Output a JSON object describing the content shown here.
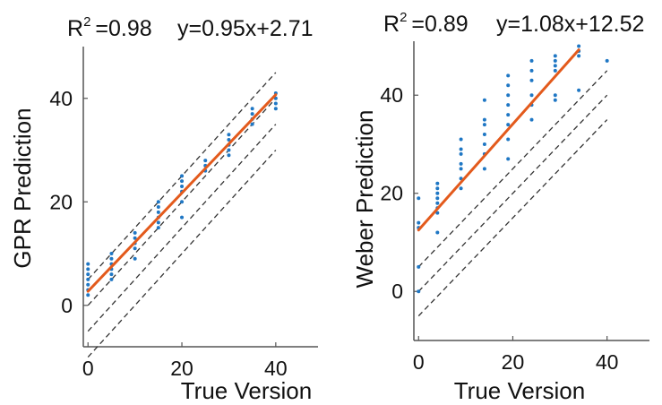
{
  "chart_data": [
    {
      "type": "scatter",
      "annotation": {
        "r2_label": "R",
        "r2_sup": "2",
        "r2_eq": "=0.98",
        "equation": "y=0.95x+2.71"
      },
      "xlabel": "True Version",
      "ylabel": "GPR Prediction",
      "xlim": [
        -1,
        49
      ],
      "ylim": [
        -8,
        50
      ],
      "x_ticks": [
        0,
        20,
        40
      ],
      "y_ticks": [
        0,
        20,
        40
      ],
      "colors": {
        "points": "#1f77c4",
        "fit": "#e35a1c",
        "guides": "#333333",
        "axis": "#555555"
      },
      "fit": {
        "slope": 0.95,
        "intercept": 2.71,
        "x_range": [
          0,
          40
        ]
      },
      "guides": {
        "slope": 1,
        "offsets": [
          5,
          0,
          -5,
          -10
        ],
        "x_range": [
          0,
          40
        ]
      },
      "points": [
        [
          0,
          2
        ],
        [
          0,
          3
        ],
        [
          0,
          4
        ],
        [
          0,
          5
        ],
        [
          0,
          6
        ],
        [
          0,
          7
        ],
        [
          0,
          8
        ],
        [
          5,
          5
        ],
        [
          5,
          6
        ],
        [
          5,
          7
        ],
        [
          5,
          8
        ],
        [
          5,
          9
        ],
        [
          5,
          10
        ],
        [
          10,
          9
        ],
        [
          10,
          11
        ],
        [
          10,
          12
        ],
        [
          10,
          13
        ],
        [
          10,
          14
        ],
        [
          15,
          15
        ],
        [
          15,
          16
        ],
        [
          15,
          17
        ],
        [
          15,
          18
        ],
        [
          15,
          19
        ],
        [
          15,
          20
        ],
        [
          20,
          17
        ],
        [
          20,
          20
        ],
        [
          20,
          22
        ],
        [
          20,
          23
        ],
        [
          20,
          24
        ],
        [
          20,
          25
        ],
        [
          25,
          26
        ],
        [
          25,
          27
        ],
        [
          25,
          28
        ],
        [
          30,
          29
        ],
        [
          30,
          30
        ],
        [
          30,
          31
        ],
        [
          30,
          32
        ],
        [
          30,
          33
        ],
        [
          35,
          35
        ],
        [
          35,
          36
        ],
        [
          35,
          37
        ],
        [
          35,
          38
        ],
        [
          40,
          38
        ],
        [
          40,
          39
        ],
        [
          40,
          40
        ],
        [
          40,
          41
        ]
      ]
    },
    {
      "type": "scatter",
      "annotation": {
        "r2_label": "R",
        "r2_sup": "2",
        "r2_eq": "=0.89",
        "equation": "y=1.08x+12.52"
      },
      "xlabel": "True Version",
      "ylabel": "Weber Prediction",
      "xlim": [
        -1,
        49
      ],
      "ylim": [
        -10,
        51
      ],
      "x_ticks": [
        0,
        20,
        40
      ],
      "y_ticks": [
        0,
        20,
        40
      ],
      "colors": {
        "points": "#1f77c4",
        "fit": "#e35a1c",
        "guides": "#333333",
        "axis": "#555555"
      },
      "fit": {
        "slope": 1.08,
        "intercept": 12.52,
        "x_range": [
          0,
          34
        ]
      },
      "guides": {
        "slope": 1,
        "offsets": [
          5,
          0,
          -5
        ],
        "x_range": [
          0,
          40
        ]
      },
      "points": [
        [
          0,
          0
        ],
        [
          0,
          5
        ],
        [
          0,
          13
        ],
        [
          0,
          14
        ],
        [
          0,
          19
        ],
        [
          4,
          12
        ],
        [
          4,
          16
        ],
        [
          4,
          17
        ],
        [
          4,
          18
        ],
        [
          4,
          19
        ],
        [
          4,
          20
        ],
        [
          4,
          21
        ],
        [
          4,
          22
        ],
        [
          9,
          21
        ],
        [
          9,
          23
        ],
        [
          9,
          25
        ],
        [
          9,
          26
        ],
        [
          9,
          28
        ],
        [
          9,
          29
        ],
        [
          9,
          31
        ],
        [
          14,
          25
        ],
        [
          14,
          28
        ],
        [
          14,
          30
        ],
        [
          14,
          32
        ],
        [
          14,
          34
        ],
        [
          14,
          35
        ],
        [
          14,
          39
        ],
        [
          19,
          27
        ],
        [
          19,
          31
        ],
        [
          19,
          34
        ],
        [
          19,
          36
        ],
        [
          19,
          38
        ],
        [
          19,
          40
        ],
        [
          19,
          42
        ],
        [
          19,
          44
        ],
        [
          24,
          35
        ],
        [
          24,
          38
        ],
        [
          24,
          40
        ],
        [
          24,
          43
        ],
        [
          24,
          45
        ],
        [
          24,
          47
        ],
        [
          29,
          39
        ],
        [
          29,
          40
        ],
        [
          29,
          45
        ],
        [
          29,
          46
        ],
        [
          29,
          47
        ],
        [
          29,
          48
        ],
        [
          34,
          41
        ],
        [
          34,
          48
        ],
        [
          34,
          49
        ],
        [
          34,
          50
        ],
        [
          40,
          47
        ]
      ]
    }
  ]
}
